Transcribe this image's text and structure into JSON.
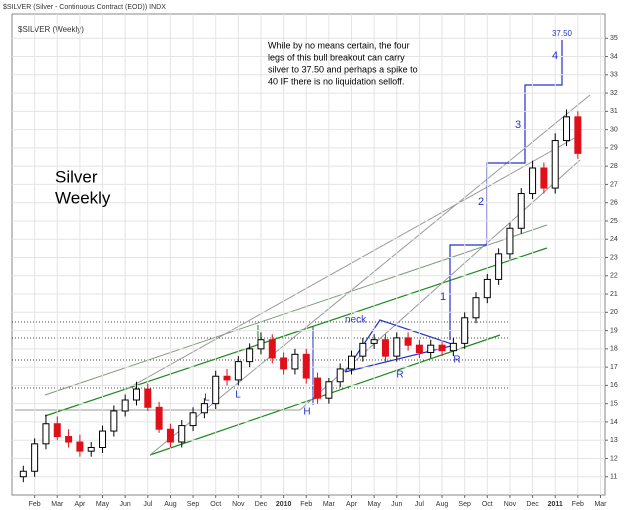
{
  "chart_data": {
    "type": "candlestick",
    "title": "$SILVER (Silver - Continuous Contract (EOD)) INDX",
    "subtitle": "$SILVER (Weekly)",
    "x": [
      0.5,
      1,
      1.5,
      2,
      2.5,
      3,
      3.5,
      4,
      4.5,
      5,
      5.5,
      6,
      6.5,
      7,
      7.5,
      8,
      8.5,
      9,
      9.5,
      10,
      10.5,
      11,
      11.5,
      12,
      12.5,
      13,
      13.5,
      14,
      14.5,
      15,
      15.5,
      16,
      16.5,
      17,
      17.5,
      18,
      18.5,
      19,
      19.5,
      20,
      20.5,
      21,
      21.5,
      22,
      22.5,
      23,
      23.5,
      24,
      24.5,
      25
    ],
    "open": [
      11.0,
      11.3,
      12.8,
      13.9,
      13.2,
      12.9,
      12.4,
      12.6,
      13.5,
      14.6,
      15.2,
      15.8,
      14.8,
      13.6,
      12.9,
      13.8,
      14.5,
      15.0,
      16.5,
      16.3,
      17.3,
      18.0,
      18.5,
      17.5,
      16.9,
      17.7,
      16.4,
      15.3,
      16.2,
      16.9,
      17.6,
      18.3,
      18.5,
      17.6,
      18.6,
      18.2,
      17.8,
      18.2,
      17.9,
      18.3,
      19.7,
      20.8,
      21.8,
      23.2,
      24.6,
      26.5,
      27.9,
      26.8,
      29.4,
      30.7
    ],
    "high": [
      11.6,
      13.1,
      14.4,
      14.3,
      13.6,
      13.3,
      12.9,
      13.8,
      14.9,
      15.5,
      16.2,
      16.1,
      15.1,
      13.9,
      14.1,
      14.8,
      15.3,
      16.8,
      16.9,
      17.6,
      18.3,
      18.9,
      18.8,
      17.8,
      18.0,
      18.0,
      16.7,
      16.4,
      17.2,
      17.9,
      18.6,
      18.8,
      18.8,
      18.9,
      18.9,
      18.5,
      18.5,
      18.4,
      18.6,
      20.0,
      21.1,
      22.1,
      23.5,
      24.9,
      26.8,
      28.3,
      28.2,
      29.8,
      31.1,
      31.0
    ],
    "low": [
      10.7,
      11.0,
      12.5,
      13.0,
      12.6,
      12.1,
      12.1,
      12.3,
      13.2,
      14.3,
      14.9,
      14.6,
      13.4,
      12.6,
      12.6,
      13.5,
      14.2,
      14.7,
      16.0,
      16.0,
      17.0,
      17.7,
      17.2,
      16.6,
      16.6,
      16.1,
      15.0,
      15.0,
      15.9,
      16.6,
      17.3,
      18.0,
      17.3,
      17.3,
      17.9,
      17.5,
      17.5,
      17.6,
      17.6,
      18.0,
      19.4,
      20.5,
      21.5,
      22.9,
      24.3,
      26.2,
      26.5,
      26.5,
      29.1,
      28.4
    ],
    "close": [
      11.3,
      12.8,
      13.9,
      13.2,
      12.9,
      12.4,
      12.6,
      13.5,
      14.6,
      15.2,
      15.8,
      14.8,
      13.6,
      12.9,
      13.8,
      14.5,
      15.0,
      16.5,
      16.3,
      17.3,
      18.0,
      18.5,
      17.5,
      16.9,
      17.7,
      16.4,
      15.3,
      16.2,
      16.9,
      17.6,
      18.3,
      18.5,
      17.6,
      18.6,
      18.2,
      17.8,
      18.2,
      17.9,
      18.3,
      19.7,
      20.8,
      21.8,
      23.2,
      24.6,
      26.5,
      27.9,
      26.8,
      29.4,
      30.7,
      28.7
    ],
    "up_color": "#000000",
    "down_color": "#e0101a",
    "xlim": [
      0,
      26.2
    ],
    "ylim": [
      10,
      36
    ],
    "xticks": [
      {
        "value": 1,
        "label": "Feb"
      },
      {
        "value": 2,
        "label": "Mar"
      },
      {
        "value": 3,
        "label": "Apr"
      },
      {
        "value": 4,
        "label": "May"
      },
      {
        "value": 5,
        "label": "Jun"
      },
      {
        "value": 6,
        "label": "Jul"
      },
      {
        "value": 7,
        "label": "Aug"
      },
      {
        "value": 8,
        "label": "Sep"
      },
      {
        "value": 9,
        "label": "Oct"
      },
      {
        "value": 10,
        "label": "Nov"
      },
      {
        "value": 11,
        "label": "Dec"
      },
      {
        "value": 12,
        "label": "2010"
      },
      {
        "value": 13,
        "label": "Feb"
      },
      {
        "value": 14,
        "label": "Mar"
      },
      {
        "value": 15,
        "label": "Apr"
      },
      {
        "value": 16,
        "label": "May"
      },
      {
        "value": 17,
        "label": "Jun"
      },
      {
        "value": 18,
        "label": "Jul"
      },
      {
        "value": 19,
        "label": "Aug"
      },
      {
        "value": 20,
        "label": "Sep"
      },
      {
        "value": 21,
        "label": "Oct"
      },
      {
        "value": 22,
        "label": "Nov"
      },
      {
        "value": 23,
        "label": "Dec"
      },
      {
        "value": 24,
        "label": "2011"
      },
      {
        "value": 25,
        "label": "Feb"
      },
      {
        "value": 26,
        "label": "Mar"
      }
    ],
    "yticks": [
      11,
      12,
      13,
      14,
      15,
      16,
      17,
      18,
      19,
      20,
      21,
      22,
      23,
      24,
      25,
      26,
      27,
      28,
      29,
      30,
      31,
      32,
      33,
      34,
      35
    ],
    "grid": true,
    "annotations": [
      "While by no means certain, the four",
      "legs of this bull breakout can carry",
      "silver to 37.50 and perhaps a spike to",
      "40 IF there is no liquidation selloff.",
      "Silver",
      "Weekly",
      "neck",
      "L",
      "L",
      "H",
      "R",
      "R",
      "1",
      "2",
      "3",
      "4",
      "37.50"
    ]
  }
}
